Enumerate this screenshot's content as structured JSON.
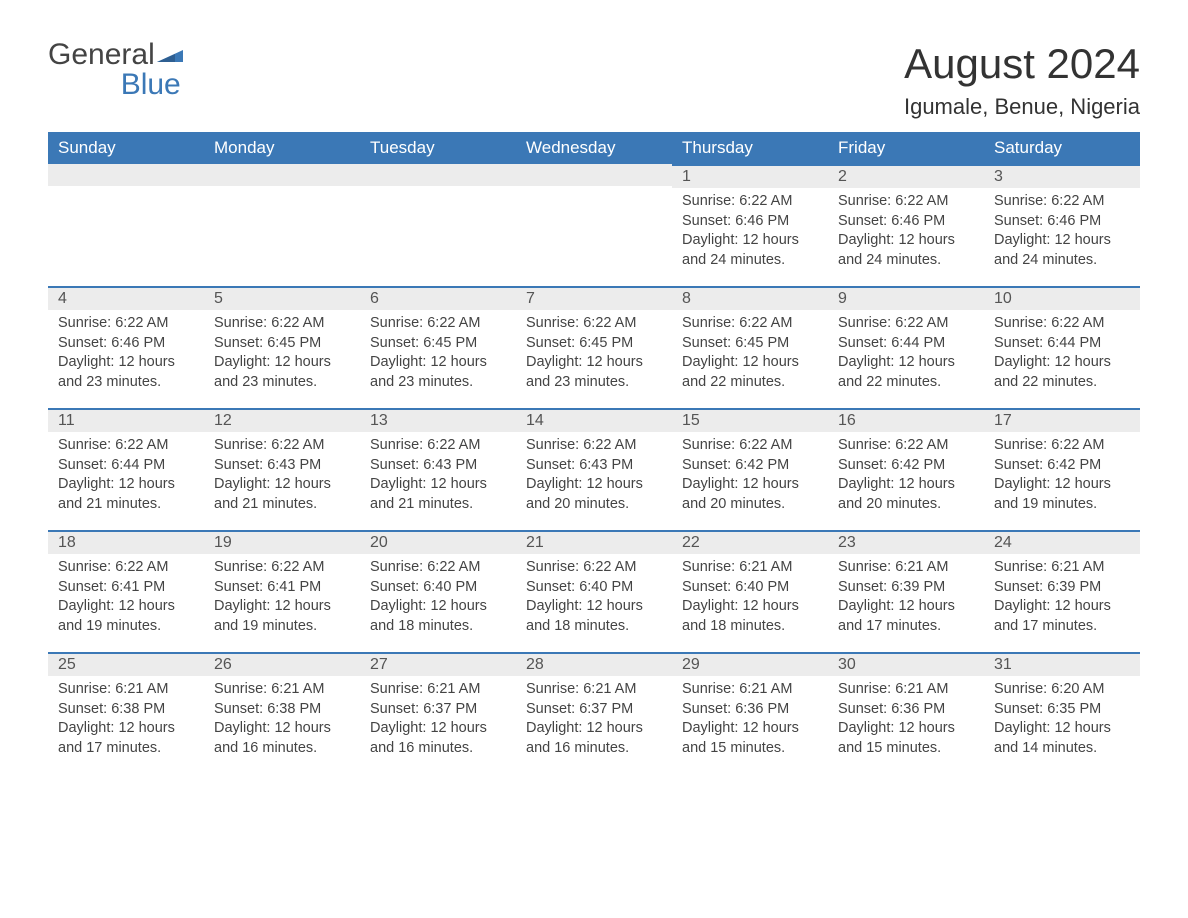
{
  "logo": {
    "text_left": "General",
    "text_right": "Blue",
    "flag_color": "#3b78b6",
    "text_left_color": "#444444",
    "text_right_color": "#3b78b6"
  },
  "title": "August 2024",
  "subtitle": "Igumale, Benue, Nigeria",
  "colors": {
    "header_bg": "#3b78b6",
    "header_text": "#ffffff",
    "daynum_bg": "#ececec",
    "daynum_border": "#3b78b6",
    "body_text": "#444444",
    "page_bg": "#ffffff"
  },
  "columns": [
    "Sunday",
    "Monday",
    "Tuesday",
    "Wednesday",
    "Thursday",
    "Friday",
    "Saturday"
  ],
  "weeks": [
    [
      {
        "empty": true
      },
      {
        "empty": true
      },
      {
        "empty": true
      },
      {
        "empty": true
      },
      {
        "day": "1",
        "sunrise": "Sunrise: 6:22 AM",
        "sunset": "Sunset: 6:46 PM",
        "daylight1": "Daylight: 12 hours",
        "daylight2": "and 24 minutes."
      },
      {
        "day": "2",
        "sunrise": "Sunrise: 6:22 AM",
        "sunset": "Sunset: 6:46 PM",
        "daylight1": "Daylight: 12 hours",
        "daylight2": "and 24 minutes."
      },
      {
        "day": "3",
        "sunrise": "Sunrise: 6:22 AM",
        "sunset": "Sunset: 6:46 PM",
        "daylight1": "Daylight: 12 hours",
        "daylight2": "and 24 minutes."
      }
    ],
    [
      {
        "day": "4",
        "sunrise": "Sunrise: 6:22 AM",
        "sunset": "Sunset: 6:46 PM",
        "daylight1": "Daylight: 12 hours",
        "daylight2": "and 23 minutes."
      },
      {
        "day": "5",
        "sunrise": "Sunrise: 6:22 AM",
        "sunset": "Sunset: 6:45 PM",
        "daylight1": "Daylight: 12 hours",
        "daylight2": "and 23 minutes."
      },
      {
        "day": "6",
        "sunrise": "Sunrise: 6:22 AM",
        "sunset": "Sunset: 6:45 PM",
        "daylight1": "Daylight: 12 hours",
        "daylight2": "and 23 minutes."
      },
      {
        "day": "7",
        "sunrise": "Sunrise: 6:22 AM",
        "sunset": "Sunset: 6:45 PM",
        "daylight1": "Daylight: 12 hours",
        "daylight2": "and 23 minutes."
      },
      {
        "day": "8",
        "sunrise": "Sunrise: 6:22 AM",
        "sunset": "Sunset: 6:45 PM",
        "daylight1": "Daylight: 12 hours",
        "daylight2": "and 22 minutes."
      },
      {
        "day": "9",
        "sunrise": "Sunrise: 6:22 AM",
        "sunset": "Sunset: 6:44 PM",
        "daylight1": "Daylight: 12 hours",
        "daylight2": "and 22 minutes."
      },
      {
        "day": "10",
        "sunrise": "Sunrise: 6:22 AM",
        "sunset": "Sunset: 6:44 PM",
        "daylight1": "Daylight: 12 hours",
        "daylight2": "and 22 minutes."
      }
    ],
    [
      {
        "day": "11",
        "sunrise": "Sunrise: 6:22 AM",
        "sunset": "Sunset: 6:44 PM",
        "daylight1": "Daylight: 12 hours",
        "daylight2": "and 21 minutes."
      },
      {
        "day": "12",
        "sunrise": "Sunrise: 6:22 AM",
        "sunset": "Sunset: 6:43 PM",
        "daylight1": "Daylight: 12 hours",
        "daylight2": "and 21 minutes."
      },
      {
        "day": "13",
        "sunrise": "Sunrise: 6:22 AM",
        "sunset": "Sunset: 6:43 PM",
        "daylight1": "Daylight: 12 hours",
        "daylight2": "and 21 minutes."
      },
      {
        "day": "14",
        "sunrise": "Sunrise: 6:22 AM",
        "sunset": "Sunset: 6:43 PM",
        "daylight1": "Daylight: 12 hours",
        "daylight2": "and 20 minutes."
      },
      {
        "day": "15",
        "sunrise": "Sunrise: 6:22 AM",
        "sunset": "Sunset: 6:42 PM",
        "daylight1": "Daylight: 12 hours",
        "daylight2": "and 20 minutes."
      },
      {
        "day": "16",
        "sunrise": "Sunrise: 6:22 AM",
        "sunset": "Sunset: 6:42 PM",
        "daylight1": "Daylight: 12 hours",
        "daylight2": "and 20 minutes."
      },
      {
        "day": "17",
        "sunrise": "Sunrise: 6:22 AM",
        "sunset": "Sunset: 6:42 PM",
        "daylight1": "Daylight: 12 hours",
        "daylight2": "and 19 minutes."
      }
    ],
    [
      {
        "day": "18",
        "sunrise": "Sunrise: 6:22 AM",
        "sunset": "Sunset: 6:41 PM",
        "daylight1": "Daylight: 12 hours",
        "daylight2": "and 19 minutes."
      },
      {
        "day": "19",
        "sunrise": "Sunrise: 6:22 AM",
        "sunset": "Sunset: 6:41 PM",
        "daylight1": "Daylight: 12 hours",
        "daylight2": "and 19 minutes."
      },
      {
        "day": "20",
        "sunrise": "Sunrise: 6:22 AM",
        "sunset": "Sunset: 6:40 PM",
        "daylight1": "Daylight: 12 hours",
        "daylight2": "and 18 minutes."
      },
      {
        "day": "21",
        "sunrise": "Sunrise: 6:22 AM",
        "sunset": "Sunset: 6:40 PM",
        "daylight1": "Daylight: 12 hours",
        "daylight2": "and 18 minutes."
      },
      {
        "day": "22",
        "sunrise": "Sunrise: 6:21 AM",
        "sunset": "Sunset: 6:40 PM",
        "daylight1": "Daylight: 12 hours",
        "daylight2": "and 18 minutes."
      },
      {
        "day": "23",
        "sunrise": "Sunrise: 6:21 AM",
        "sunset": "Sunset: 6:39 PM",
        "daylight1": "Daylight: 12 hours",
        "daylight2": "and 17 minutes."
      },
      {
        "day": "24",
        "sunrise": "Sunrise: 6:21 AM",
        "sunset": "Sunset: 6:39 PM",
        "daylight1": "Daylight: 12 hours",
        "daylight2": "and 17 minutes."
      }
    ],
    [
      {
        "day": "25",
        "sunrise": "Sunrise: 6:21 AM",
        "sunset": "Sunset: 6:38 PM",
        "daylight1": "Daylight: 12 hours",
        "daylight2": "and 17 minutes."
      },
      {
        "day": "26",
        "sunrise": "Sunrise: 6:21 AM",
        "sunset": "Sunset: 6:38 PM",
        "daylight1": "Daylight: 12 hours",
        "daylight2": "and 16 minutes."
      },
      {
        "day": "27",
        "sunrise": "Sunrise: 6:21 AM",
        "sunset": "Sunset: 6:37 PM",
        "daylight1": "Daylight: 12 hours",
        "daylight2": "and 16 minutes."
      },
      {
        "day": "28",
        "sunrise": "Sunrise: 6:21 AM",
        "sunset": "Sunset: 6:37 PM",
        "daylight1": "Daylight: 12 hours",
        "daylight2": "and 16 minutes."
      },
      {
        "day": "29",
        "sunrise": "Sunrise: 6:21 AM",
        "sunset": "Sunset: 6:36 PM",
        "daylight1": "Daylight: 12 hours",
        "daylight2": "and 15 minutes."
      },
      {
        "day": "30",
        "sunrise": "Sunrise: 6:21 AM",
        "sunset": "Sunset: 6:36 PM",
        "daylight1": "Daylight: 12 hours",
        "daylight2": "and 15 minutes."
      },
      {
        "day": "31",
        "sunrise": "Sunrise: 6:20 AM",
        "sunset": "Sunset: 6:35 PM",
        "daylight1": "Daylight: 12 hours",
        "daylight2": "and 14 minutes."
      }
    ]
  ]
}
